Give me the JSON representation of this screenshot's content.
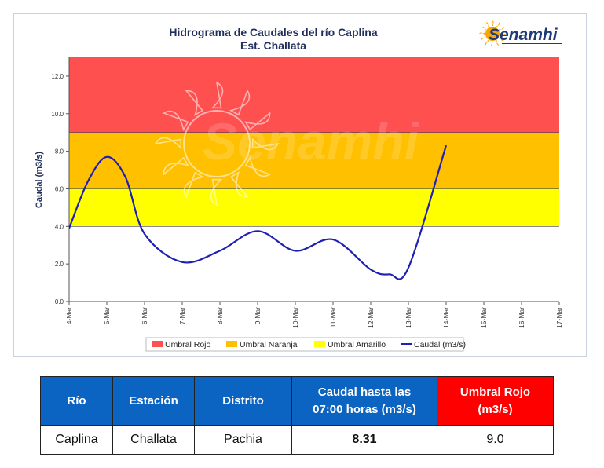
{
  "chart_data": {
    "type": "line",
    "title": "Hidrograma de Caudales del río Caplina",
    "subtitle": "Est. Challata",
    "ylabel": "Caudal (m3/s)",
    "xlabel": "",
    "ylim": [
      0,
      13
    ],
    "yticks": [
      0,
      2,
      4,
      6,
      8,
      10,
      12
    ],
    "ytick_labels": [
      "0.0",
      "2.0",
      "4.0",
      "6.0",
      "8.0",
      "10.0",
      "12.0"
    ],
    "x_categories": [
      "4-Mar",
      "5-Mar",
      "6-Mar",
      "7-Mar",
      "8-Mar",
      "9-Mar",
      "10-Mar",
      "11-Mar",
      "12-Mar",
      "13-Mar",
      "14-Mar",
      "15-Mar",
      "16-Mar",
      "17-Mar"
    ],
    "grid": false,
    "legend_position": "bottom",
    "thresholds": [
      {
        "name": "Umbral Rojo",
        "from": 9.0,
        "to": 13.0,
        "color": "#ff5050"
      },
      {
        "name": "Umbral Naranja",
        "from": 6.0,
        "to": 9.0,
        "color": "#ffc000"
      },
      {
        "name": "Umbral Amarillo",
        "from": 4.0,
        "to": 6.0,
        "color": "#ffff00"
      }
    ],
    "series": [
      {
        "name": "Caudal (m3/s)",
        "color": "#1f1fb4",
        "x": [
          0,
          0.5,
          1,
          1.5,
          2,
          3,
          4,
          5,
          6,
          7,
          8,
          8.5,
          9,
          10
        ],
        "y": [
          3.9,
          6.4,
          7.7,
          6.6,
          3.6,
          2.1,
          2.7,
          3.75,
          2.7,
          3.3,
          1.7,
          1.45,
          1.8,
          8.31
        ]
      }
    ]
  },
  "logo": {
    "name": "Senamhi",
    "watermark": "Senamhi"
  },
  "table": {
    "headers": [
      "Río",
      "Estación",
      "Distrito",
      "Caudal hasta las",
      "07:00 horas (m3/s)",
      "Umbral Rojo",
      "(m3/s)"
    ],
    "row": [
      "Caplina",
      "Challata",
      "Pachia",
      "8.31",
      "9.0"
    ]
  }
}
